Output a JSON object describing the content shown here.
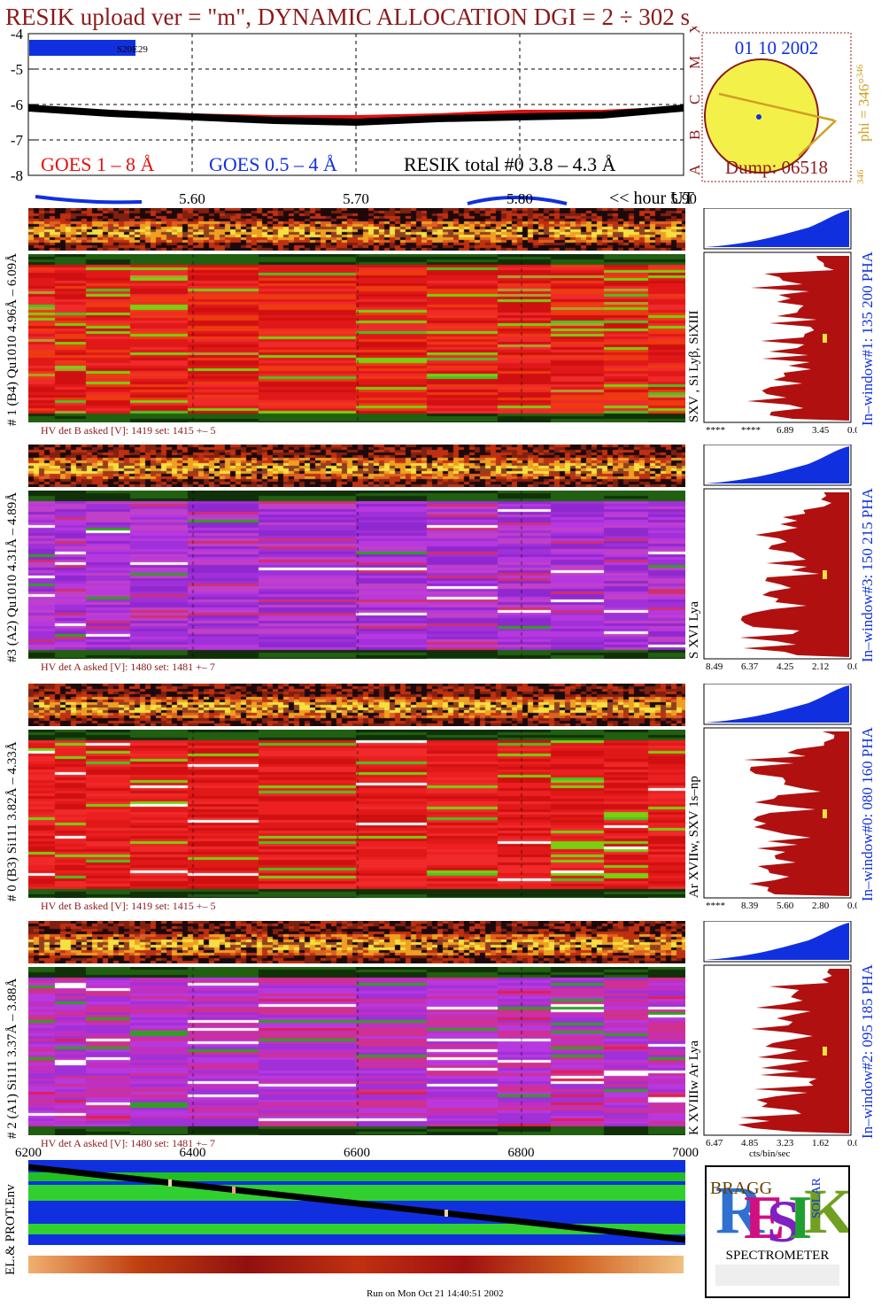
{
  "header": {
    "title": "RESIK upload ver = \"m\", DYNAMIC ALLOCATION  DGI =   2 ÷ 302 s"
  },
  "goes_panel": {
    "y_ticks": [
      "-4",
      "-5",
      "-6",
      "-7",
      "-8"
    ],
    "annotation": "S20E29",
    "legend_goes_long": "GOES 1 – 8 Å",
    "legend_goes_short": "GOES 0.5 – 4 Å",
    "legend_resik": "RESIK total #0  3.8 – 4.3 Å",
    "class_letters": [
      "X",
      "M",
      "C",
      "B",
      "A"
    ],
    "colors": {
      "goes_long": "#e01010",
      "goes_short": "#1030e0",
      "resik": "#000000"
    }
  },
  "time_axis": {
    "ticks": [
      "5.60",
      "5.70",
      "5.80",
      "5.90"
    ],
    "unit_label": "<< hour UT"
  },
  "sun_panel": {
    "date": "01 10 2002",
    "phi_label": "phi = 346°",
    "phi_superscript": "346",
    "phi_small": "346",
    "dump": "Dump: 06518"
  },
  "channels": [
    {
      "left_label": "# 1 (B4) Qu1010 4.96Å – 6.09Å",
      "line_label": "SXV , Si Lyβ, SiXIII",
      "right_label": "In–window#1:  135 200 PHA",
      "hv_text": "HV det B asked [V]:  1419 set:  1415  +–   5",
      "axis_ticks": [
        "****",
        "****",
        "6.89",
        "3.45",
        "0.00"
      ]
    },
    {
      "left_label": "#3 (A2) Qu1010  4.31Å – 4.89Å",
      "line_label": "S XVI Lya",
      "right_label": "In–window#3:  150 215 PHA",
      "hv_text": "HV det A asked [V]:  1480 set:  1481  +–    7",
      "axis_ticks": [
        "8.49",
        "6.37",
        "4.25",
        "2.12",
        "0.00"
      ]
    },
    {
      "left_label": "# 0 (B3) Si111  3.82Å – 4.33Å",
      "line_label": "Ar XVIIw, SXV 1s–np",
      "right_label": "In–window#0:  080 160 PHA",
      "hv_text": "HV det B asked [V]:  1419 set:  1415  +–   5",
      "axis_ticks": [
        "****",
        "8.39",
        "5.60",
        "2.80",
        "0.00"
      ]
    },
    {
      "left_label": "# 2 (A1) Si111  3.37Å – 3.88Å",
      "line_label": "K XVIIIw  Ar Lya",
      "right_label": "In–window#2:  095 185 PHA",
      "hv_text": "HV det A asked [V]:  1480 set:  1481  +–    7",
      "axis_ticks": [
        "6.47",
        "4.85",
        "3.23",
        "1.62",
        "0.00"
      ],
      "axis_unit": "cts/bin/sec"
    }
  ],
  "bottom_axis": {
    "ticks": [
      "6200",
      "6400",
      "6600",
      "6800",
      "7000"
    ]
  },
  "env_panel": {
    "label": "EL.& PROT.Env"
  },
  "logo": {
    "letters": "RESIK",
    "bragg": "BRAGG",
    "solar": "SOLAR",
    "caption": "SPECTROMETER"
  },
  "footer": {
    "run_text": "Run on Mon Oct 21 14:40:51 2002"
  },
  "chart_data": {
    "type": "line",
    "title": "RESIK upload ver = \"m\", DYNAMIC ALLOCATION  DGI =   2 ÷ 302 s",
    "xlabel": "<< hour UT",
    "ylabel": "",
    "x_ticks": [
      5.6,
      5.7,
      5.8,
      5.9
    ],
    "xlim": [
      5.5,
      5.9
    ],
    "ylim": [
      -8.1,
      -3.9
    ],
    "grid": true,
    "legend_placement": "bottom",
    "series": [
      {
        "name": "GOES 1 – 8 Å",
        "x": [
          5.5,
          5.55,
          5.6,
          5.65,
          5.7,
          5.75,
          5.8,
          5.85,
          5.9
        ],
        "values": [
          -6.1,
          -6.2,
          -6.3,
          -6.35,
          -6.35,
          -6.3,
          -6.2,
          -6.2,
          -6.1
        ]
      },
      {
        "name": "RESIK total #0  3.8 – 4.3 Å",
        "x": [
          5.5,
          5.55,
          5.6,
          5.65,
          5.7,
          5.75,
          5.8,
          5.85,
          5.9
        ],
        "values": [
          -6.1,
          -6.25,
          -6.35,
          -6.45,
          -6.5,
          -6.4,
          -6.35,
          -6.3,
          -6.1
        ]
      }
    ]
  }
}
